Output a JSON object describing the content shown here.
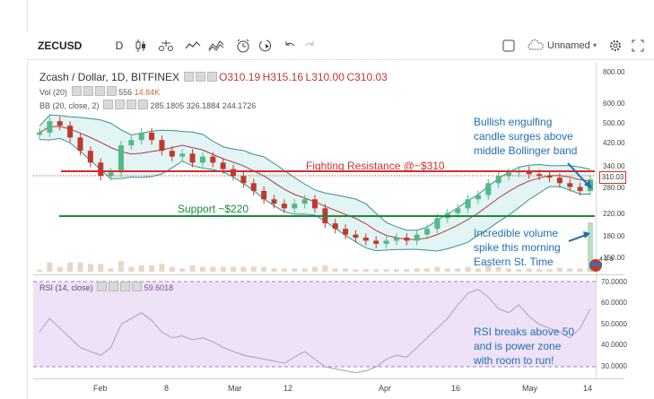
{
  "toolbar": {
    "symbol": "ZECUSD",
    "interval": "D",
    "layout_name": "Unnamed"
  },
  "chart_header": {
    "title_prefix": "Zcash / Dollar, 1D, BITFINEX",
    "open": "O310.19",
    "high": "H315.16",
    "low": "L310.00",
    "close": "C310.03"
  },
  "indicators": {
    "vol_label": "Vol (20)",
    "vol_value1": "556",
    "vol_value2": "14.84K",
    "bb_label": "BB (20, close, 2)",
    "bb_basis": "285.1805",
    "bb_upper": "326.1884",
    "bb_lower": "244.1726",
    "rsi_label": "RSI (14, close)",
    "rsi_value": "59.6018"
  },
  "price_axis": {
    "ticks": [
      "800.00",
      "600.00",
      "500.00",
      "420.00",
      "340.00",
      "280.00",
      "220.00",
      "180.00",
      "150.00"
    ],
    "current_price": "310.03"
  },
  "rsi_axis": {
    "ticks": [
      "70.0000",
      "60.0000",
      "50.0000",
      "40.0000",
      "30.0000"
    ]
  },
  "time_axis": {
    "labels": [
      "Feb",
      "8",
      "Mar",
      "12",
      "Apr",
      "16",
      "May",
      "14"
    ]
  },
  "annotations": {
    "bullish": [
      "Bullish engulfing",
      "candle surges above",
      "middle Bollinger band"
    ],
    "resistance": "Fighting Resistance  @~$310",
    "support": "Support ~$220",
    "volume": [
      "Incredible volume",
      "spike this morning",
      "Eastern St. Time"
    ],
    "rsi": [
      "RSI breaks above 50",
      "and is power zone",
      "with room to run!"
    ],
    "marker_count": "4 3 3"
  },
  "colors": {
    "resistance_line": "#d32f2f",
    "support_line": "#1a8a3a",
    "annotation_blue": "#1f6fb2",
    "rsi_band": "#efe2f7",
    "bb_fill": "#e3f4f4",
    "up_candle": "#53b987",
    "down_candle": "#c0392b"
  },
  "chart_data": {
    "type": "candlestick",
    "title": "Zcash / Dollar, 1D, BITFINEX",
    "ylim": [
      140,
      820
    ],
    "close_prices": [
      470,
      520,
      500,
      450,
      400,
      360,
      320,
      330,
      420,
      440,
      470,
      440,
      400,
      380,
      390,
      360,
      380,
      360,
      340,
      320,
      300,
      280,
      260,
      250,
      240,
      250,
      260,
      240,
      210,
      200,
      190,
      185,
      180,
      175,
      180,
      185,
      180,
      190,
      200,
      220,
      230,
      240,
      260,
      270,
      300,
      320,
      330,
      335,
      325,
      320,
      315,
      300,
      290,
      280,
      310
    ],
    "resistance_level": 310,
    "support_level": 220,
    "rsi_values": [
      48,
      55,
      50,
      45,
      40,
      38,
      36,
      40,
      52,
      55,
      58,
      54,
      48,
      45,
      46,
      44,
      45,
      43,
      40,
      38,
      36,
      35,
      34,
      33,
      32,
      35,
      38,
      34,
      30,
      29,
      28,
      27,
      28,
      30,
      34,
      36,
      35,
      40,
      45,
      50,
      55,
      62,
      68,
      70,
      66,
      60,
      58,
      62,
      56,
      52,
      50,
      48,
      45,
      50,
      60
    ],
    "rsi_ylim": [
      25,
      75
    ]
  }
}
